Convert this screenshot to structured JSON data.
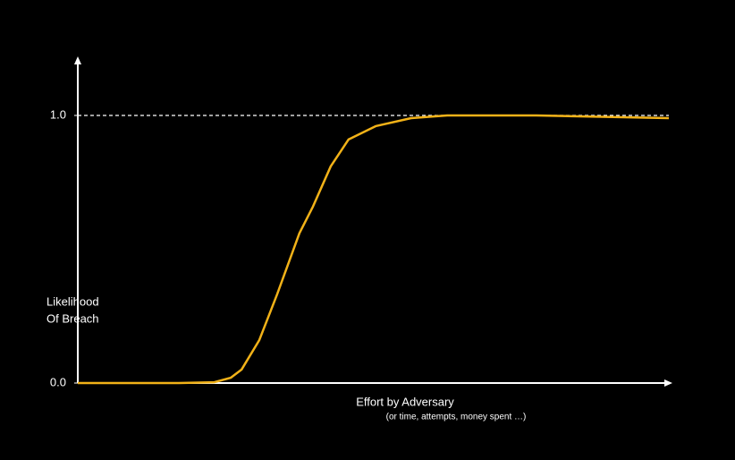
{
  "chart_data": {
    "type": "line",
    "ylabel": [
      "Likelihood",
      "Of Breach"
    ],
    "xlabel": "Effort by Adversary",
    "xlabel_note": "(or time, attempts, money spent …)",
    "x": [
      0,
      9.5,
      17.1,
      23.1,
      25.9,
      27.7,
      30.7,
      33.7,
      37.5,
      39.8,
      42.8,
      45.8,
      50.4,
      56.4,
      62.5,
      77.6,
      100
    ],
    "series": [
      {
        "name": "Likelihood",
        "color": "#f2b218",
        "values": [
          0,
          0,
          0,
          0.003,
          0.02,
          0.05,
          0.16,
          0.33,
          0.56,
          0.66,
          0.81,
          0.91,
          0.96,
          0.99,
          1.0,
          1.0,
          0.99
        ]
      }
    ],
    "xlim": [
      0,
      100
    ],
    "ylim": [
      0,
      1
    ],
    "yticks": [
      {
        "value": 0,
        "label": "0.0"
      },
      {
        "value": 1,
        "label": "1.0"
      }
    ],
    "reference_line": 1
  }
}
